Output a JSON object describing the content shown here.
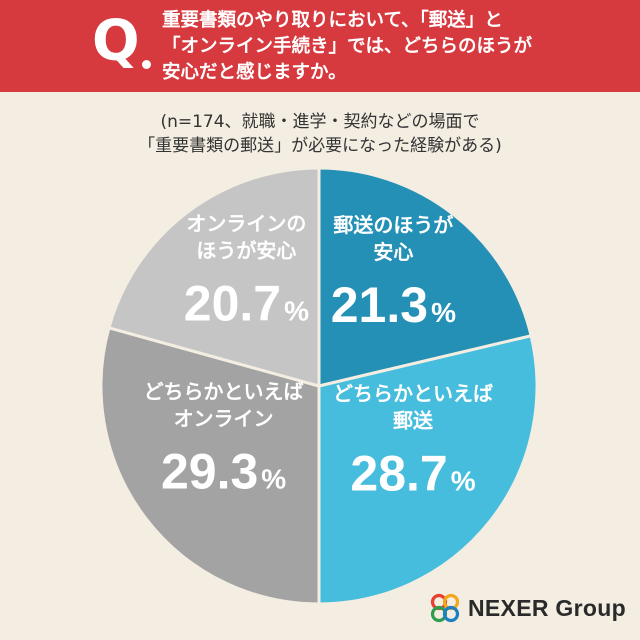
{
  "question": {
    "mark": "Q",
    "lines": [
      "重要書類のやり取りにおいて、「郵送」と",
      "「オンライン手続き」では、どちらのほうが",
      "安心だと感じますか。"
    ]
  },
  "subtitle": {
    "lines": [
      "(n=174、就職・進学・契約などの場面で",
      "「重要書類の郵送」が必要になった経験がある)"
    ]
  },
  "colors": {
    "header_bg": "#d63a3f",
    "page_bg": "#f3ede2",
    "slice_mail": "#2490b5",
    "slice_rather_mail": "#47bddd",
    "slice_rather_online": "#a3a3a3",
    "slice_online": "#c5c5c5"
  },
  "chart_data": {
    "type": "pie",
    "n": 174,
    "start": "12 o'clock",
    "direction": "clockwise",
    "slices": [
      {
        "label_lines": [
          "郵送のほうが",
          "安心"
        ],
        "value": 21.3,
        "value_text": "21.3",
        "unit": "%",
        "color": "#2490b5"
      },
      {
        "label_lines": [
          "どちらかといえば",
          "郵送"
        ],
        "value": 28.7,
        "value_text": "28.7",
        "unit": "%",
        "color": "#47bddd"
      },
      {
        "label_lines": [
          "どちらかといえば",
          "オンライン"
        ],
        "value": 29.3,
        "value_text": "29.3",
        "unit": "%",
        "color": "#a3a3a3"
      },
      {
        "label_lines": [
          "オンラインの",
          "ほうが安心"
        ],
        "value": 20.7,
        "value_text": "20.7",
        "unit": "%",
        "color": "#c5c5c5"
      }
    ]
  },
  "logo": {
    "text": "NEXER Group",
    "icon": "nexer-logo-icon"
  }
}
